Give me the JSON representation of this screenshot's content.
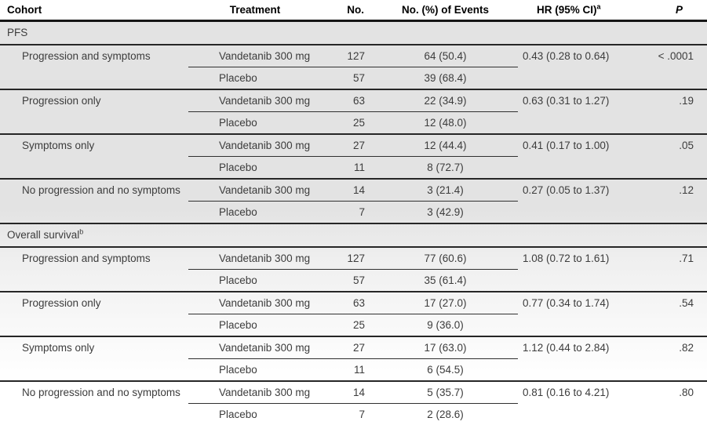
{
  "colors": {
    "separator": "#262626",
    "header_rule": "#161616",
    "body_text": "#3c3c3c",
    "header_text": "#000000",
    "shade_top": "#e3e3e3",
    "shade_bottom": "#ffffff"
  },
  "table": {
    "headers": [
      {
        "text": "Cohort"
      },
      {
        "text": "Treatment"
      },
      {
        "text": "No."
      },
      {
        "text": "No. (%) of Events"
      },
      {
        "text": "HR (95% CI)",
        "sup": "a"
      },
      {
        "text": "P",
        "italic": true
      }
    ],
    "sections": [
      {
        "label": "PFS",
        "label_sup": "",
        "groups": [
          {
            "cohort": "Progression and symptoms",
            "rows": [
              {
                "treatment": "Vandetanib 300 mg",
                "no": "127",
                "events": "64 (50.4)"
              },
              {
                "treatment": "Placebo",
                "no": "57",
                "events": "39 (68.4)"
              }
            ],
            "hr": "0.43 (0.28 to 0.64)",
            "p": "< .0001"
          },
          {
            "cohort": "Progression only",
            "rows": [
              {
                "treatment": "Vandetanib 300 mg",
                "no": "63",
                "events": "22 (34.9)"
              },
              {
                "treatment": "Placebo",
                "no": "25",
                "events": "12 (48.0)"
              }
            ],
            "hr": "0.63 (0.31 to 1.27)",
            "p": ".19"
          },
          {
            "cohort": "Symptoms only",
            "rows": [
              {
                "treatment": "Vandetanib 300 mg",
                "no": "27",
                "events": "12 (44.4)"
              },
              {
                "treatment": "Placebo",
                "no": "11",
                "events": "8 (72.7)"
              }
            ],
            "hr": "0.41 (0.17 to 1.00)",
            "p": ".05"
          },
          {
            "cohort": "No progression and no symptoms",
            "rows": [
              {
                "treatment": "Vandetanib 300 mg",
                "no": "14",
                "events": "3 (21.4)"
              },
              {
                "treatment": "Placebo",
                "no": "7",
                "events": "3 (42.9)"
              }
            ],
            "hr": "0.27 (0.05 to 1.37)",
            "p": ".12"
          }
        ]
      },
      {
        "label": "Overall survival",
        "label_sup": "b",
        "groups": [
          {
            "cohort": "Progression and symptoms",
            "rows": [
              {
                "treatment": "Vandetanib 300 mg",
                "no": "127",
                "events": "77 (60.6)"
              },
              {
                "treatment": "Placebo",
                "no": "57",
                "events": "35 (61.4)"
              }
            ],
            "hr": "1.08 (0.72 to 1.61)",
            "p": ".71"
          },
          {
            "cohort": "Progression only",
            "rows": [
              {
                "treatment": "Vandetanib 300 mg",
                "no": "63",
                "events": "17 (27.0)"
              },
              {
                "treatment": "Placebo",
                "no": "25",
                "events": "9 (36.0)"
              }
            ],
            "hr": "0.77 (0.34 to 1.74)",
            "p": ".54"
          },
          {
            "cohort": "Symptoms only",
            "rows": [
              {
                "treatment": "Vandetanib 300 mg",
                "no": "27",
                "events": "17 (63.0)"
              },
              {
                "treatment": "Placebo",
                "no": "11",
                "events": "6 (54.5)"
              }
            ],
            "hr": "1.12 (0.44 to 2.84)",
            "p": ".82"
          },
          {
            "cohort": "No progression and no symptoms",
            "rows": [
              {
                "treatment": "Vandetanib 300 mg",
                "no": "14",
                "events": "5 (35.7)"
              },
              {
                "treatment": "Placebo",
                "no": "7",
                "events": "2 (28.6)"
              }
            ],
            "hr": "0.81 (0.16 to 4.21)",
            "p": ".80"
          }
        ]
      }
    ]
  }
}
